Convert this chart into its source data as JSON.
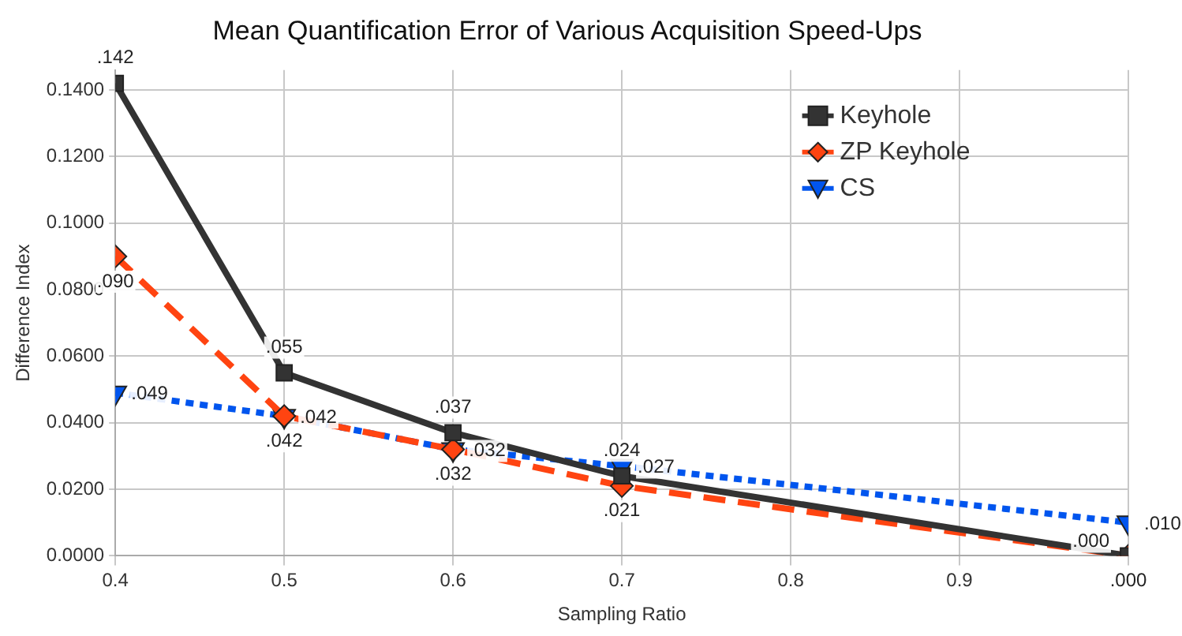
{
  "chart_data": {
    "type": "line",
    "title": "Mean Quantification Error of Various Acquisition Speed-Ups",
    "xlabel": "Sampling Ratio",
    "ylabel": "Difference Index",
    "xlim": [
      0.4,
      1
    ],
    "xticks": [
      {
        "value": 0.4,
        "label": "0.4"
      },
      {
        "value": 0.5,
        "label": "0.5"
      },
      {
        "value": 0.6,
        "label": "0.6"
      },
      {
        "value": 0.7,
        "label": "0.7"
      },
      {
        "value": 0.8,
        "label": "0.8"
      },
      {
        "value": 0.9,
        "label": "0.9"
      },
      {
        "value": 1,
        "label": null
      }
    ],
    "ylim": [
      0,
      0.146
    ],
    "yticks": [
      {
        "value": 0,
        "label": "0.0000"
      },
      {
        "value": 0.02,
        "label": "0.0200"
      },
      {
        "value": 0.04,
        "label": "0.0400"
      },
      {
        "value": 0.06,
        "label": "0.0600"
      },
      {
        "value": 0.08,
        "label": "0.0800"
      },
      {
        "value": 0.1,
        "label": "0.1000"
      },
      {
        "value": 0.12,
        "label": "0.1200"
      },
      {
        "value": 0.14,
        "label": "0.1400"
      }
    ],
    "x": [
      0.4,
      0.5,
      0.6,
      0.7,
      1
    ],
    "grid": true,
    "legend": "top right",
    "series": [
      {
        "name": "Keyhole",
        "color": "#333333",
        "marker": "square",
        "line_style": "solid",
        "values": [
          0.142,
          0.055,
          0.037,
          0.024,
          0.0
        ],
        "value_labels": [
          ".142",
          ".055",
          ".037",
          ".024",
          ".000"
        ]
      },
      {
        "name": "ZP Keyhole",
        "color": "#ff4411",
        "marker": "diamond",
        "line_style": "dashed",
        "values": [
          0.09,
          0.042,
          0.032,
          0.021,
          0.0
        ],
        "value_labels": [
          ".090",
          ".042",
          ".032",
          ".021",
          ".000"
        ]
      },
      {
        "name": "CS",
        "color": "#0055ee",
        "marker": "triangle",
        "line_style": "dotted",
        "values": [
          0.049,
          0.042,
          0.032,
          0.027,
          0.01
        ],
        "value_labels": [
          ".049",
          ".042",
          ".032",
          ".027",
          ".010"
        ]
      }
    ]
  }
}
